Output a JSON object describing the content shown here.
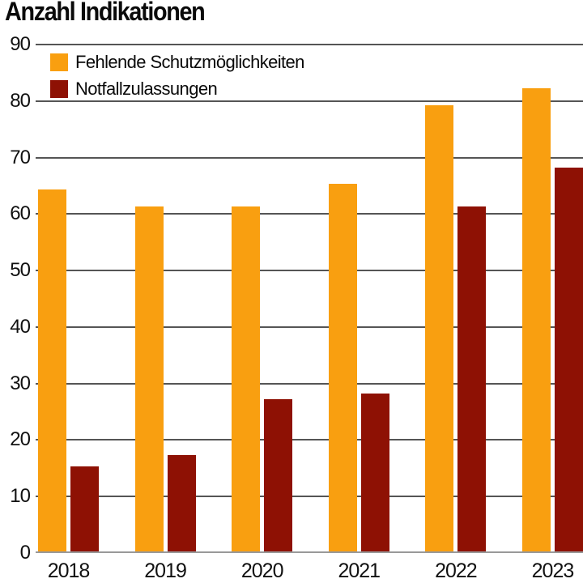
{
  "title": "Anzahl Indikationen",
  "colors": {
    "orange": "#F99F10",
    "dark_red": "#8E1104",
    "gridline": "#555555",
    "baseline": "#999999",
    "text": "#111111",
    "background": "#FFFFFF"
  },
  "legend": {
    "items": [
      {
        "label": "Fehlende Schutzmöglichkeiten",
        "color": "#F99F10"
      },
      {
        "label": "Notfallzulassungen",
        "color": "#8E1104"
      }
    ]
  },
  "y_axis": {
    "ticks": [
      0,
      10,
      20,
      30,
      40,
      50,
      60,
      70,
      80,
      90
    ],
    "max": 90
  },
  "chart_data": {
    "type": "bar",
    "title": "Anzahl Indikationen",
    "categories": [
      "2018",
      "2019",
      "2020",
      "2021",
      "2022",
      "2023"
    ],
    "series": [
      {
        "name": "Fehlende Schutzmöglichkeiten",
        "color": "#F99F10",
        "values": [
          64,
          61,
          61,
          65,
          79,
          82
        ]
      },
      {
        "name": "Notfallzulassungen",
        "color": "#8E1104",
        "values": [
          15,
          17,
          27,
          28,
          61,
          68
        ]
      }
    ],
    "xlabel": "",
    "ylabel": "",
    "ylim": [
      0,
      90
    ],
    "ytick_step": 10,
    "grid": true,
    "legend_position": "top-left-inside"
  }
}
